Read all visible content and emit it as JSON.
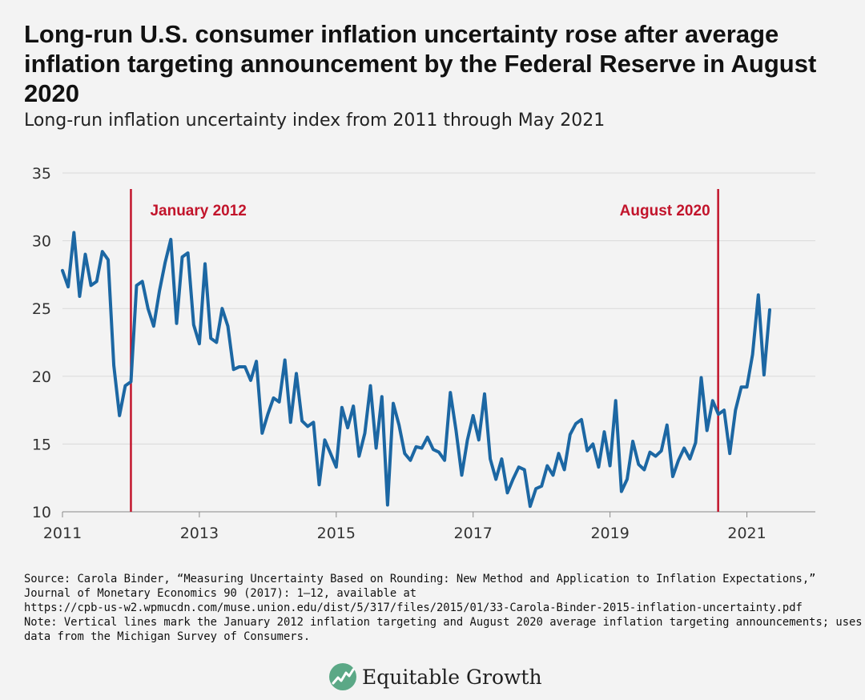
{
  "title": "Long-run U.S. consumer inflation uncertainty rose after average inflation targeting announcement by the Federal Reserve in August 2020",
  "subtitle": "Long-run inflation uncertainty index from 2011 through May 2021",
  "source": {
    "lines": [
      "Source: Carola Binder, “Measuring Uncertainty Based on Rounding: New Method and Application to Inflation Expectations,”",
      "Journal of Monetary Economics 90 (2017): 1–12, available at",
      "https://cpb-us-w2.wpmucdn.com/muse.union.edu/dist/5/317/files/2015/01/33-Carola-Binder-2015-inflation-uncertainty.pdf",
      "Note: Vertical lines mark the January 2012 inflation targeting and August 2020 average inflation targeting announcements; uses",
      "data from the Michigan Survey of Consumers."
    ]
  },
  "logo": {
    "text": "Equitable Growth",
    "icon": "equitable-growth-logo-icon",
    "color": "#5ba886"
  },
  "colors": {
    "line": "#1c67a3",
    "marker": "#c2142b",
    "grid": "#d9d9d9",
    "axis": "#666666"
  },
  "chart_data": {
    "type": "line",
    "title": "",
    "xlabel": "",
    "ylabel": "",
    "ylim": [
      10,
      35
    ],
    "yticks": [
      10,
      15,
      20,
      25,
      30,
      35
    ],
    "xlim": [
      2011,
      2022
    ],
    "xticks": [
      {
        "value": 2011,
        "label": "2011"
      },
      {
        "value": 2013,
        "label": "2013"
      },
      {
        "value": 2015,
        "label": "2015"
      },
      {
        "value": 2017,
        "label": "2017"
      },
      {
        "value": 2019,
        "label": "2019"
      },
      {
        "value": 2021,
        "label": "2021"
      }
    ],
    "grid": true,
    "annotations": [
      {
        "x": 2012.0,
        "label": "January 2012",
        "label_side": "right"
      },
      {
        "x": 2020.58,
        "label": "August 2020",
        "label_side": "left"
      }
    ],
    "series": [
      {
        "name": "",
        "x": [
          2011.0,
          2011.083,
          2011.167,
          2011.25,
          2011.333,
          2011.417,
          2011.5,
          2011.583,
          2011.667,
          2011.75,
          2011.833,
          2011.917,
          2012.0,
          2012.083,
          2012.167,
          2012.25,
          2012.333,
          2012.417,
          2012.5,
          2012.583,
          2012.667,
          2012.75,
          2012.833,
          2012.917,
          2013.0,
          2013.083,
          2013.167,
          2013.25,
          2013.333,
          2013.417,
          2013.5,
          2013.583,
          2013.667,
          2013.75,
          2013.833,
          2013.917,
          2014.0,
          2014.083,
          2014.167,
          2014.25,
          2014.333,
          2014.417,
          2014.5,
          2014.583,
          2014.667,
          2014.75,
          2014.833,
          2014.917,
          2015.0,
          2015.083,
          2015.167,
          2015.25,
          2015.333,
          2015.417,
          2015.5,
          2015.583,
          2015.667,
          2015.75,
          2015.833,
          2015.917,
          2016.0,
          2016.083,
          2016.167,
          2016.25,
          2016.333,
          2016.417,
          2016.5,
          2016.583,
          2016.667,
          2016.75,
          2016.833,
          2016.917,
          2017.0,
          2017.083,
          2017.167,
          2017.25,
          2017.333,
          2017.417,
          2017.5,
          2017.583,
          2017.667,
          2017.75,
          2017.833,
          2017.917,
          2018.0,
          2018.083,
          2018.167,
          2018.25,
          2018.333,
          2018.417,
          2018.5,
          2018.583,
          2018.667,
          2018.75,
          2018.833,
          2018.917,
          2019.0,
          2019.083,
          2019.167,
          2019.25,
          2019.333,
          2019.417,
          2019.5,
          2019.583,
          2019.667,
          2019.75,
          2019.833,
          2019.917,
          2020.0,
          2020.083,
          2020.167,
          2020.25,
          2020.333,
          2020.417,
          2020.5,
          2020.583,
          2020.667,
          2020.75,
          2020.833,
          2020.917,
          2021.0,
          2021.083,
          2021.167,
          2021.25,
          2021.333
        ],
        "values": [
          27.8,
          26.6,
          30.6,
          25.9,
          29.0,
          26.7,
          27.0,
          29.2,
          28.6,
          20.8,
          17.1,
          19.3,
          19.6,
          26.7,
          27.0,
          25.0,
          23.7,
          26.3,
          28.4,
          30.1,
          23.9,
          28.8,
          29.1,
          23.8,
          22.4,
          28.3,
          22.8,
          22.5,
          25.0,
          23.7,
          20.5,
          20.7,
          20.7,
          19.7,
          21.1,
          15.8,
          17.2,
          18.4,
          18.1,
          21.2,
          16.6,
          20.2,
          16.7,
          16.3,
          16.6,
          12.0,
          15.3,
          14.3,
          13.3,
          17.7,
          16.2,
          17.8,
          14.1,
          15.8,
          19.3,
          14.7,
          18.5,
          10.5,
          18.0,
          16.4,
          14.3,
          13.8,
          14.8,
          14.7,
          15.5,
          14.6,
          14.4,
          13.8,
          18.8,
          16.0,
          12.7,
          15.3,
          17.1,
          15.3,
          18.7,
          13.9,
          12.4,
          13.9,
          11.4,
          12.4,
          13.3,
          13.1,
          10.4,
          11.7,
          11.9,
          13.4,
          12.7,
          14.3,
          13.1,
          15.7,
          16.5,
          16.8,
          14.5,
          15.0,
          13.3,
          15.9,
          13.4,
          18.2,
          11.5,
          12.4,
          15.2,
          13.5,
          13.1,
          14.4,
          14.1,
          14.5,
          16.4,
          12.6,
          13.8,
          14.7,
          13.9,
          15.1,
          19.9,
          16.0,
          18.2,
          17.2,
          17.5,
          14.3,
          17.5,
          19.2,
          19.2,
          21.6,
          26.0,
          20.1,
          24.9
        ]
      }
    ]
  }
}
